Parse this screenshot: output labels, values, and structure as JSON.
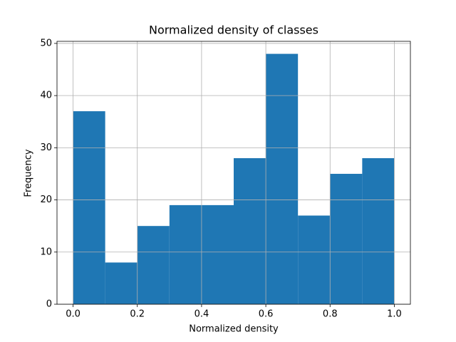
{
  "chart_data": {
    "type": "histogram",
    "title": "Normalized density of classes",
    "x_label": "Normalized density",
    "y_label": "Frequency",
    "bins": [
      0,
      0.1,
      0.2,
      0.3,
      0.4,
      0.5,
      0.6,
      0.7,
      0.8,
      0.9,
      1.0
    ],
    "values": [
      37,
      8,
      15,
      19,
      19,
      28,
      48,
      17,
      25,
      28
    ],
    "color": "#1f77b4",
    "xlim": [
      -0.05,
      1.05
    ],
    "xticks": [
      {
        "value": 0,
        "label": "0.0"
      },
      0.2,
      0.4,
      0.6,
      0.8,
      {
        "value": 1,
        "label": "1.0"
      }
    ],
    "ylim": [
      0,
      50.4
    ],
    "yticks": [
      0,
      10,
      20,
      30,
      40,
      50
    ],
    "grid": true
  }
}
